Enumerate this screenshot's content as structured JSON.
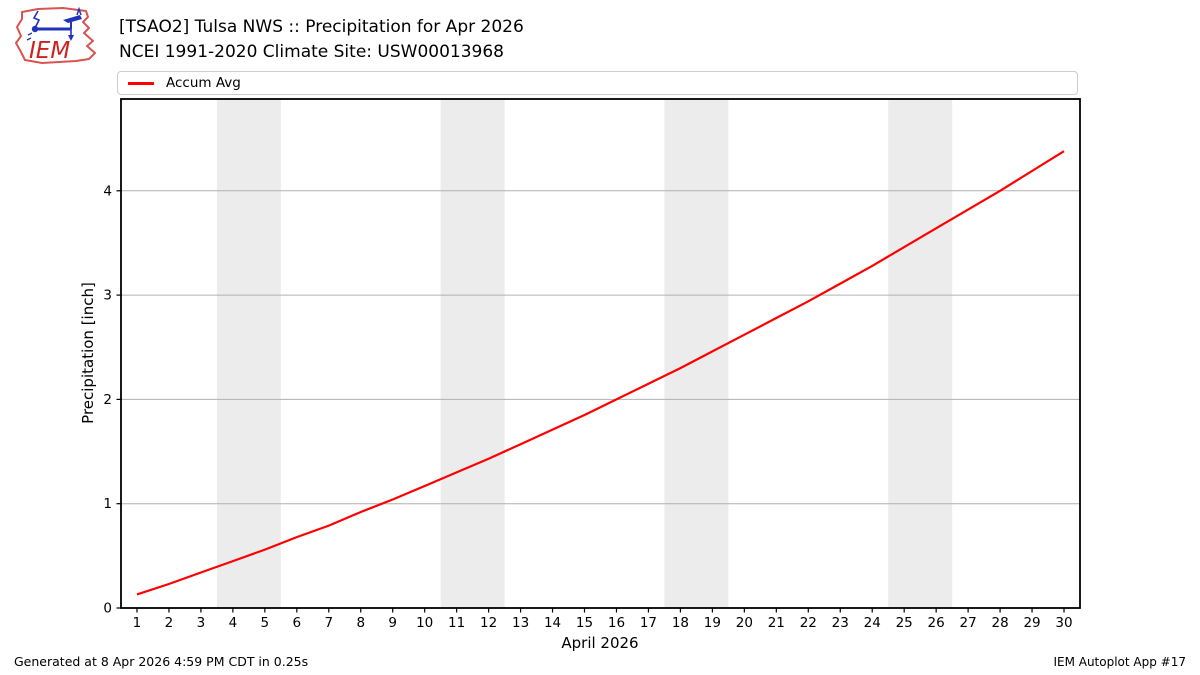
{
  "header": {
    "title_line1": "[TSAO2] Tulsa NWS :: Precipitation for Apr 2026",
    "title_line2": "NCEI 1991-2020 Climate Site: USW00013968",
    "logo_text": "IEM"
  },
  "legend": {
    "items": [
      {
        "label": "Accum Avg",
        "color": "#ff0000"
      }
    ]
  },
  "footer": {
    "left": "Generated at 8 Apr 2026 4:59 PM CDT in 0.25s",
    "right": "IEM Autoplot App #17"
  },
  "chart_data": {
    "type": "line",
    "title": "[TSAO2] Tulsa NWS :: Precipitation for Apr 2026",
    "subtitle": "NCEI 1991-2020 Climate Site: USW00013968",
    "xlabel": "April 2026",
    "ylabel": "Precipitation [inch]",
    "xlim": [
      0.5,
      30.5
    ],
    "ylim": [
      0,
      4.88
    ],
    "yticks": [
      0,
      1,
      2,
      3,
      4
    ],
    "xticks": [
      1,
      2,
      3,
      4,
      5,
      6,
      7,
      8,
      9,
      10,
      11,
      12,
      13,
      14,
      15,
      16,
      17,
      18,
      19,
      20,
      21,
      22,
      23,
      24,
      25,
      26,
      27,
      28,
      29,
      30
    ],
    "grid": "horizontal-only",
    "legend_position": "top",
    "weekend_bands": [
      [
        3.5,
        5.5
      ],
      [
        10.5,
        12.5
      ],
      [
        17.5,
        19.5
      ],
      [
        24.5,
        26.5
      ]
    ],
    "series": [
      {
        "name": "Accum Avg",
        "color": "#ff0000",
        "x": [
          1,
          2,
          3,
          4,
          5,
          6,
          7,
          8,
          9,
          10,
          11,
          12,
          13,
          14,
          15,
          16,
          17,
          18,
          19,
          20,
          21,
          22,
          23,
          24,
          25,
          26,
          27,
          28,
          29,
          30
        ],
        "values": [
          0.13,
          0.23,
          0.34,
          0.45,
          0.56,
          0.68,
          0.79,
          0.92,
          1.04,
          1.17,
          1.3,
          1.43,
          1.57,
          1.71,
          1.85,
          2.0,
          2.15,
          2.3,
          2.46,
          2.62,
          2.78,
          2.94,
          3.11,
          3.28,
          3.46,
          3.64,
          3.82,
          4.0,
          4.19,
          4.38
        ]
      }
    ],
    "colors": {
      "line": "#ff0000",
      "weekend_band": "#ececec",
      "gridline": "#b0b0b0",
      "axis": "#000000"
    }
  }
}
